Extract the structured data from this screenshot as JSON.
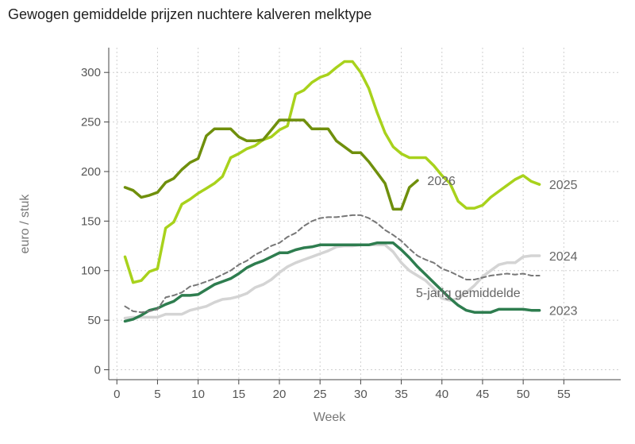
{
  "chart_data": {
    "type": "line",
    "title": "Gewogen gemiddelde prijzen nuchtere kalveren melktype",
    "xlabel": "Week",
    "ylabel": "euro / stuk",
    "xlim": [
      -1,
      62
    ],
    "ylim": [
      -10,
      325
    ],
    "xticks": [
      0,
      5,
      10,
      15,
      20,
      25,
      30,
      35,
      40,
      45,
      50,
      55
    ],
    "yticks": [
      0,
      50,
      100,
      150,
      200,
      250,
      300
    ],
    "grid": true,
    "legend": "direct labels at line ends",
    "series": [
      {
        "name": "2024",
        "color": "#d4d4d4",
        "dashed": false,
        "x": [
          1,
          2,
          3,
          4,
          5,
          6,
          7,
          8,
          9,
          10,
          11,
          12,
          13,
          14,
          15,
          16,
          17,
          18,
          19,
          20,
          21,
          22,
          23,
          24,
          25,
          26,
          27,
          28,
          29,
          30,
          31,
          32,
          33,
          34,
          35,
          36,
          37,
          38,
          39,
          40,
          41,
          42,
          43,
          44,
          45,
          46,
          47,
          48,
          49,
          50,
          51,
          52
        ],
        "values": [
          52,
          53,
          53,
          53,
          53,
          56,
          56,
          56,
          60,
          62,
          64,
          68,
          71,
          72,
          74,
          77,
          83,
          86,
          91,
          98,
          104,
          108,
          111,
          114,
          117,
          120,
          124,
          125,
          125,
          126,
          126,
          126,
          126,
          119,
          108,
          100,
          95,
          90,
          82,
          72,
          70,
          72,
          78,
          85,
          94,
          100,
          106,
          108,
          108,
          114,
          115,
          115
        ]
      },
      {
        "name": "2023",
        "color": "#2e7d4f",
        "dashed": false,
        "x": [
          1,
          2,
          3,
          4,
          5,
          6,
          7,
          8,
          9,
          10,
          11,
          12,
          13,
          14,
          15,
          16,
          17,
          18,
          19,
          20,
          21,
          22,
          23,
          24,
          25,
          26,
          27,
          28,
          29,
          30,
          31,
          32,
          33,
          34,
          35,
          36,
          37,
          38,
          39,
          40,
          41,
          42,
          43,
          44,
          45,
          46,
          47,
          48,
          49,
          50,
          51,
          52
        ],
        "values": [
          49,
          51,
          55,
          60,
          62,
          66,
          69,
          75,
          75,
          76,
          81,
          86,
          89,
          92,
          97,
          103,
          107,
          110,
          114,
          118,
          118,
          121,
          123,
          124,
          126,
          126,
          126,
          126,
          126,
          126,
          126,
          128,
          128,
          128,
          121,
          113,
          104,
          96,
          88,
          80,
          72,
          65,
          60,
          58,
          58,
          58,
          61,
          61,
          61,
          61,
          60,
          60
        ]
      },
      {
        "name": "5-jarig gemiddelde",
        "color": "#777777",
        "dashed": true,
        "x": [
          1,
          2,
          3,
          4,
          5,
          6,
          7,
          8,
          9,
          10,
          11,
          12,
          13,
          14,
          15,
          16,
          17,
          18,
          19,
          20,
          21,
          22,
          23,
          24,
          25,
          26,
          27,
          28,
          29,
          30,
          31,
          32,
          33,
          34,
          35,
          36,
          37,
          38,
          39,
          40,
          41,
          42,
          43,
          44,
          45,
          46,
          47,
          48,
          49,
          50,
          51,
          52
        ],
        "values": [
          64,
          59,
          58,
          59,
          61,
          73,
          75,
          78,
          84,
          86,
          89,
          92,
          96,
          100,
          106,
          110,
          116,
          120,
          125,
          128,
          134,
          138,
          145,
          150,
          153,
          154,
          154,
          155,
          156,
          156,
          153,
          148,
          141,
          136,
          130,
          122,
          115,
          111,
          108,
          102,
          99,
          95,
          91,
          91,
          93,
          95,
          96,
          97,
          96,
          97,
          95,
          95
        ]
      },
      {
        "name": "2025",
        "color": "#a8d21c",
        "dashed": false,
        "x": [
          1,
          2,
          3,
          4,
          5,
          6,
          7,
          8,
          9,
          10,
          11,
          12,
          13,
          14,
          15,
          16,
          17,
          18,
          19,
          20,
          21,
          22,
          23,
          24,
          25,
          26,
          27,
          28,
          29,
          30,
          31,
          32,
          33,
          34,
          35,
          36,
          37,
          38,
          39,
          40,
          41,
          42,
          43,
          44,
          45,
          46,
          47,
          48,
          49,
          50,
          51,
          52
        ],
        "values": [
          114,
          88,
          90,
          99,
          102,
          143,
          149,
          167,
          172,
          178,
          183,
          188,
          195,
          214,
          218,
          223,
          226,
          232,
          235,
          242,
          246,
          278,
          282,
          290,
          295,
          298,
          305,
          311,
          311,
          300,
          284,
          260,
          239,
          225,
          218,
          214,
          214,
          214,
          206,
          196,
          188,
          170,
          163,
          163,
          166,
          174,
          180,
          186,
          192,
          196,
          190,
          187
        ]
      },
      {
        "name": "2026",
        "color": "#6f8f0c",
        "dashed": false,
        "x": [
          1,
          2,
          3,
          4,
          5,
          6,
          7,
          8,
          9,
          10,
          11,
          12,
          13,
          14,
          15,
          16,
          17,
          18,
          19,
          20,
          21,
          22,
          23,
          24,
          25,
          26,
          27,
          28,
          29,
          30,
          31,
          32,
          33,
          34,
          35,
          36,
          37
        ],
        "values": [
          184,
          181,
          174,
          176,
          179,
          189,
          193,
          202,
          209,
          213,
          236,
          243,
          243,
          243,
          235,
          231,
          231,
          232,
          242,
          252,
          252,
          252,
          252,
          243,
          243,
          243,
          231,
          225,
          219,
          219,
          210,
          199,
          188,
          162,
          162,
          184,
          191
        ]
      }
    ]
  }
}
